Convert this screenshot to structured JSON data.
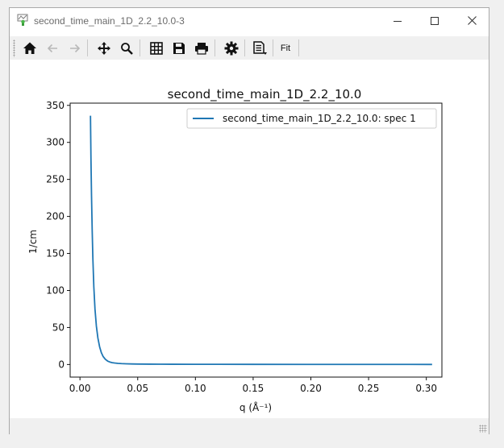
{
  "window": {
    "title": "second_time_main_1D_2.2_10.0-3"
  },
  "toolbar": {
    "fit_label": "Fit",
    "icons": [
      "home-icon",
      "back-arrow-icon",
      "forward-arrow-icon",
      "pan-icon",
      "zoom-icon",
      "grid-icon",
      "save-icon",
      "print-icon",
      "settings-icon",
      "document-menu-icon"
    ]
  },
  "chart_data": {
    "type": "line",
    "title": "second_time_main_1D_2.2_10.0",
    "xlabel": "q (Å⁻¹)",
    "ylabel": "1/cm",
    "xlim": [
      -0.0085,
      0.3135
    ],
    "ylim": [
      -17,
      353
    ],
    "xticks": [
      0.0,
      0.05,
      0.1,
      0.15,
      0.2,
      0.25,
      0.3
    ],
    "xtick_labels": [
      "0.00",
      "0.05",
      "0.10",
      "0.15",
      "0.20",
      "0.25",
      "0.30"
    ],
    "yticks": [
      0,
      50,
      100,
      150,
      200,
      250,
      300,
      350
    ],
    "ytick_labels": [
      "0",
      "50",
      "100",
      "150",
      "200",
      "250",
      "300",
      "350"
    ],
    "grid": false,
    "legend_position": "top-right",
    "series": [
      {
        "name": "second_time_main_1D_2.2_10.0: spec 1",
        "color": "#1f77b4",
        "x": [
          0.0091,
          0.0095,
          0.01,
          0.0106,
          0.0112,
          0.012,
          0.013,
          0.0142,
          0.0155,
          0.017,
          0.0185,
          0.02,
          0.022,
          0.024,
          0.026,
          0.028,
          0.03,
          0.033,
          0.036,
          0.04,
          0.045,
          0.05,
          0.06,
          0.07,
          0.08,
          0.1,
          0.12,
          0.15,
          0.2,
          0.25,
          0.305
        ],
        "values": [
          336,
          280,
          228,
          180,
          142,
          105,
          75,
          52,
          36,
          24,
          16,
          11,
          7,
          4.6,
          3.3,
          2.5,
          2.0,
          1.5,
          1.2,
          0.95,
          0.75,
          0.62,
          0.48,
          0.4,
          0.35,
          0.28,
          0.24,
          0.2,
          0.16,
          0.13,
          0.1
        ]
      }
    ]
  }
}
